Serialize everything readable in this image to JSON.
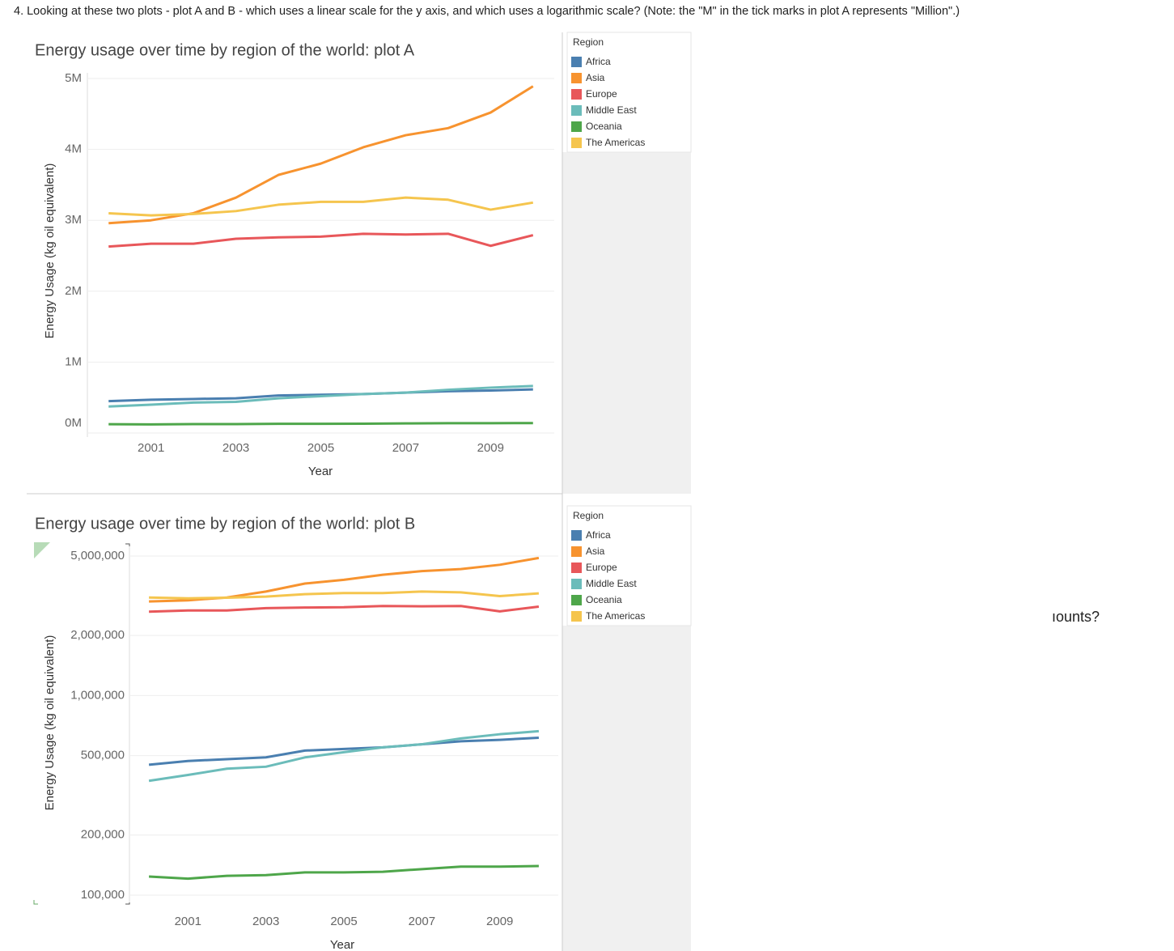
{
  "question": "4. Looking at these two plots - plot A and B - which uses a linear scale for the y axis, and which uses a logarithmic scale? (Note: the \"M\" in the tick marks in plot A represents \"Million\".)",
  "fragment": "ıounts?",
  "chart_data": [
    {
      "type": "line",
      "title": "Energy usage over time by region of the world: plot A",
      "x_label": "Year",
      "y_label": "Energy Usage (kg oil equivalent)",
      "legend_title": "Region",
      "legend": "right",
      "log_scale": false,
      "grid": true,
      "x": [
        2000,
        2001,
        2002,
        2003,
        2004,
        2005,
        2006,
        2007,
        2008,
        2009,
        2010
      ],
      "xlim": [
        1999.5,
        2010.5
      ],
      "xticks": [
        2001,
        2003,
        2005,
        2007,
        2009
      ],
      "ylim": [
        0,
        5000000
      ],
      "yticks": [
        {
          "value": 0,
          "label": "0M"
        },
        {
          "value": 1000000,
          "label": "1M"
        },
        {
          "value": 2000000,
          "label": "2M"
        },
        {
          "value": 3000000,
          "label": "3M"
        },
        {
          "value": 4000000,
          "label": "4M"
        },
        {
          "value": 5000000,
          "label": "5M"
        }
      ],
      "series": [
        {
          "name": "Africa",
          "color": "#4a7fb0",
          "values": [
            450000,
            470000,
            480000,
            490000,
            530000,
            540000,
            550000,
            570000,
            590000,
            600000,
            615000
          ]
        },
        {
          "name": "Asia",
          "color": "#f7932f",
          "values": [
            2960000,
            3000000,
            3100000,
            3320000,
            3640000,
            3800000,
            4030000,
            4200000,
            4300000,
            4520000,
            4890000
          ]
        },
        {
          "name": "Europe",
          "color": "#e8575a",
          "values": [
            2630000,
            2670000,
            2670000,
            2740000,
            2760000,
            2770000,
            2810000,
            2800000,
            2810000,
            2640000,
            2790000
          ]
        },
        {
          "name": "Middle East",
          "color": "#6bbcba",
          "values": [
            374000,
            400000,
            430000,
            440000,
            490000,
            520000,
            550000,
            570000,
            610000,
            640000,
            663000
          ]
        },
        {
          "name": "Oceania",
          "color": "#4ea64a",
          "values": [
            124000,
            121000,
            125000,
            126000,
            130000,
            130000,
            131000,
            135000,
            139000,
            139000,
            140000
          ]
        },
        {
          "name": "The Americas",
          "color": "#f5c54e",
          "values": [
            3100000,
            3070000,
            3090000,
            3130000,
            3220000,
            3260000,
            3260000,
            3320000,
            3290000,
            3150000,
            3250000
          ]
        }
      ]
    },
    {
      "type": "line",
      "title": "Energy usage over time by region of the world: plot B",
      "x_label": "Year",
      "y_label": "Energy Usage (kg oil equivalent)",
      "legend_title": "Region",
      "legend": "right",
      "log_scale": true,
      "grid": true,
      "x": [
        2000,
        2001,
        2002,
        2003,
        2004,
        2005,
        2006,
        2007,
        2008,
        2009,
        2010
      ],
      "xlim": [
        1999.5,
        2010.5
      ],
      "xticks": [
        2001,
        2003,
        2005,
        2007,
        2009
      ],
      "ylim": [
        100000,
        5000000
      ],
      "yticks": [
        {
          "value": 100000,
          "label": "100,000"
        },
        {
          "value": 200000,
          "label": "200,000"
        },
        {
          "value": 500000,
          "label": "500,000"
        },
        {
          "value": 1000000,
          "label": "1,000,000"
        },
        {
          "value": 2000000,
          "label": "2,000,000"
        },
        {
          "value": 5000000,
          "label": "5,000,000"
        }
      ],
      "series": [
        {
          "name": "Africa",
          "color": "#4a7fb0",
          "values": [
            450000,
            470000,
            480000,
            490000,
            530000,
            540000,
            550000,
            570000,
            590000,
            600000,
            615000
          ]
        },
        {
          "name": "Asia",
          "color": "#f7932f",
          "values": [
            2960000,
            3000000,
            3100000,
            3320000,
            3640000,
            3800000,
            4030000,
            4200000,
            4300000,
            4520000,
            4890000
          ]
        },
        {
          "name": "Europe",
          "color": "#e8575a",
          "values": [
            2630000,
            2670000,
            2670000,
            2740000,
            2760000,
            2770000,
            2810000,
            2800000,
            2810000,
            2640000,
            2790000
          ]
        },
        {
          "name": "Middle East",
          "color": "#6bbcba",
          "values": [
            374000,
            400000,
            430000,
            440000,
            490000,
            520000,
            550000,
            570000,
            610000,
            640000,
            663000
          ]
        },
        {
          "name": "Oceania",
          "color": "#4ea64a",
          "values": [
            124000,
            121000,
            125000,
            126000,
            130000,
            130000,
            131000,
            135000,
            139000,
            139000,
            140000
          ]
        },
        {
          "name": "The Americas",
          "color": "#f5c54e",
          "values": [
            3100000,
            3070000,
            3090000,
            3130000,
            3220000,
            3260000,
            3260000,
            3320000,
            3290000,
            3150000,
            3250000
          ]
        }
      ]
    }
  ]
}
